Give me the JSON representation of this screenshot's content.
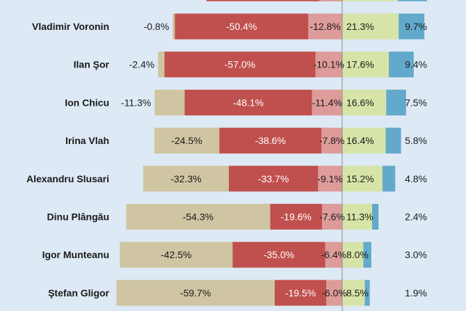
{
  "chart_data": {
    "type": "bar",
    "orientation": "horizontal",
    "stacked": true,
    "diverging": true,
    "categories": [
      "Vladimir Voronin",
      "Ilan Şor",
      "Ion Chicu",
      "Irina Vlah",
      "Alexandru Slusari",
      "Dinu Plângău",
      "Igor Munteanu",
      "Ştefan Gligor"
    ],
    "series": [
      {
        "side": "negative",
        "color": "#cfc5a2",
        "labels": [
          "-0.8%",
          "-2.4%",
          "-11.3%",
          "-24.5%",
          "-32.3%",
          "-54.3%",
          "-42.5%",
          "-59.7%"
        ],
        "values": [
          -0.8,
          -2.4,
          -11.3,
          -24.5,
          -32.3,
          -54.3,
          -42.5,
          -59.7
        ]
      },
      {
        "side": "negative",
        "color": "#c0504d",
        "labels": [
          "-50.4%",
          "-57.0%",
          "-48.1%",
          "-38.6%",
          "-33.7%",
          "-19.6%",
          "-35.0%",
          "-19.5%"
        ],
        "values": [
          -50.4,
          -57.0,
          -48.1,
          -38.6,
          -33.7,
          -19.6,
          -35.0,
          -19.5
        ]
      },
      {
        "side": "negative",
        "color": "#dd9c9a",
        "labels": [
          "-12.8%",
          "-10.1%",
          "-11.4%",
          "-7.8%",
          "-9.1%",
          "-7.6%",
          "-6.4%",
          "-6.0%"
        ],
        "values": [
          -12.8,
          -10.1,
          -11.4,
          -7.8,
          -9.1,
          -7.6,
          -6.4,
          -6.0
        ]
      },
      {
        "side": "positive",
        "color": "#d7e4a8",
        "labels": [
          "21.3%",
          "17.6%",
          "16.6%",
          "16.4%",
          "15.2%",
          "11.3%",
          "8.0%",
          "8.5%"
        ],
        "values": [
          21.3,
          17.6,
          16.6,
          16.4,
          15.2,
          11.3,
          8.0,
          8.5
        ]
      },
      {
        "side": "positive",
        "color": "#62a9cc",
        "labels": [
          "9.7%",
          "9.4%",
          "7.5%",
          "5.8%",
          "4.8%",
          "2.4%",
          "3.0%",
          "1.9%"
        ],
        "values": [
          9.7,
          9.4,
          7.5,
          5.8,
          4.8,
          2.4,
          3.0,
          1.9
        ]
      }
    ],
    "grid": false,
    "legend": "none"
  }
}
